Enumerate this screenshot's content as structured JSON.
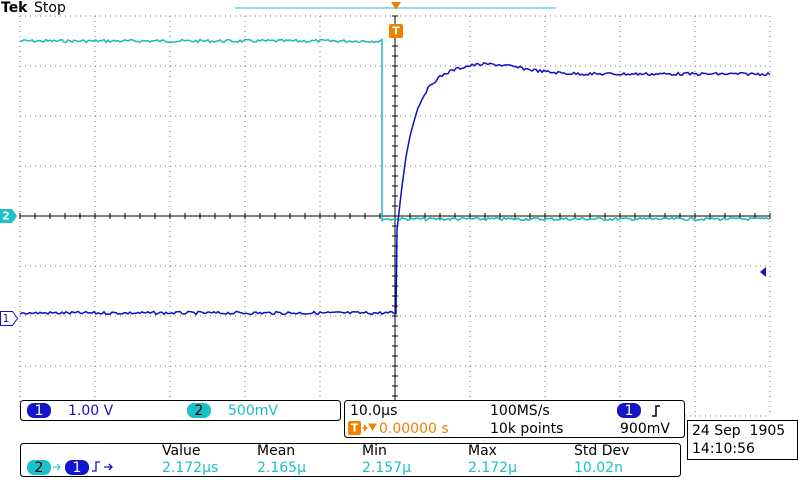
{
  "header": {
    "brand": "Tek",
    "status": "Stop"
  },
  "markers": {
    "ch2": "2",
    "ch1": "1",
    "trigger": "T"
  },
  "channels": [
    {
      "label": "1",
      "scale": "1.00 V"
    },
    {
      "label": "2",
      "scale": "500mV"
    }
  ],
  "timebase": {
    "scale": "10.0µs",
    "sample_rate": "100MS/s",
    "trigger_source": "1",
    "trigger_marker": "T",
    "trigger_position": "0.00000 s",
    "record_length": "10k points",
    "trigger_level": "900mV"
  },
  "clock": {
    "date": "24 Sep  1905",
    "time": "14:10:56"
  },
  "measurement": {
    "source_from": "2",
    "source_to": "1",
    "headers": [
      "Value",
      "Mean",
      "Min",
      "Max",
      "Std Dev"
    ],
    "values": [
      "2.172µs",
      "2.165µ",
      "2.157µ",
      "2.172µ",
      "10.02n"
    ]
  }
}
